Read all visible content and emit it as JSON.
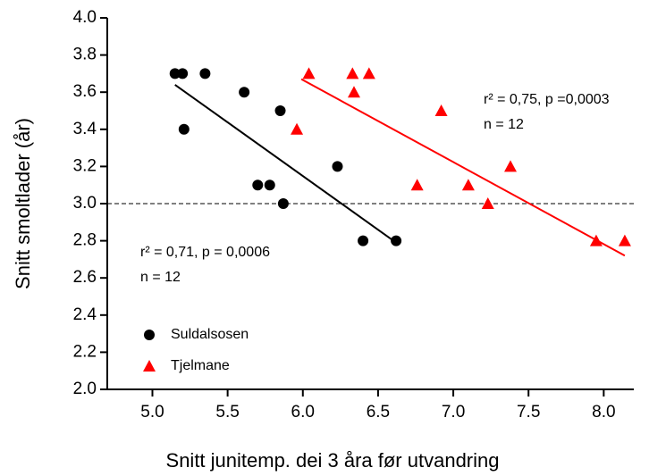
{
  "chart_data": {
    "type": "scatter",
    "x_label": "Snitt junitemp. dei 3 åra før utvandring",
    "y_label": "Snitt smoltlader (år)",
    "xlim": [
      4.7,
      8.2
    ],
    "ylim": [
      2.0,
      4.0
    ],
    "xticks": [
      {
        "value": 5,
        "label": "5.0"
      },
      {
        "value": 5.5,
        "label": "5.5"
      },
      {
        "value": 6,
        "label": "6.0"
      },
      {
        "value": 6.5,
        "label": "6.5"
      },
      {
        "value": 7,
        "label": "7.0"
      },
      {
        "value": 7.5,
        "label": "7.5"
      },
      {
        "value": 8,
        "label": "8.0"
      }
    ],
    "yticks": [
      {
        "value": 2,
        "label": "2.0"
      },
      2.2,
      2.4,
      2.6,
      2.8,
      {
        "value": 3,
        "label": "3.0"
      },
      3.2,
      3.4,
      3.6,
      3.8,
      {
        "value": 4,
        "label": "4.0"
      }
    ],
    "reference_line": 3.0,
    "series": [
      {
        "name": "Suldalsosen",
        "color": "#000000",
        "marker": "circle",
        "x": [
          5.15,
          5.2,
          5.35,
          5.61,
          5.85,
          5.21,
          5.7,
          5.78,
          5.87,
          6.23,
          6.4,
          6.62
        ],
        "values": [
          3.7,
          3.7,
          3.7,
          3.6,
          3.5,
          3.4,
          3.1,
          3.1,
          3.0,
          3.2,
          2.8,
          2.8
        ],
        "fit": {
          "x": [
            5.15,
            6.62
          ],
          "values": [
            3.64,
            2.79
          ]
        },
        "annotation": [
          "r² = 0,71, p = 0,0006",
          "n = 12"
        ]
      },
      {
        "name": "Tjelmane",
        "color": "#ff0000",
        "marker": "triangle",
        "x": [
          6.04,
          6.33,
          6.44,
          6.34,
          6.92,
          5.96,
          7.38,
          6.76,
          7.1,
          7.23,
          7.95,
          8.14
        ],
        "values": [
          3.7,
          3.7,
          3.7,
          3.6,
          3.5,
          3.4,
          3.2,
          3.1,
          3.1,
          3.0,
          2.8,
          2.8
        ],
        "fit": {
          "x": [
            5.99,
            8.14
          ],
          "values": [
            3.67,
            2.72
          ]
        },
        "annotation": [
          "r² = 0,75, p =0,0003",
          "n = 12"
        ]
      }
    ]
  }
}
